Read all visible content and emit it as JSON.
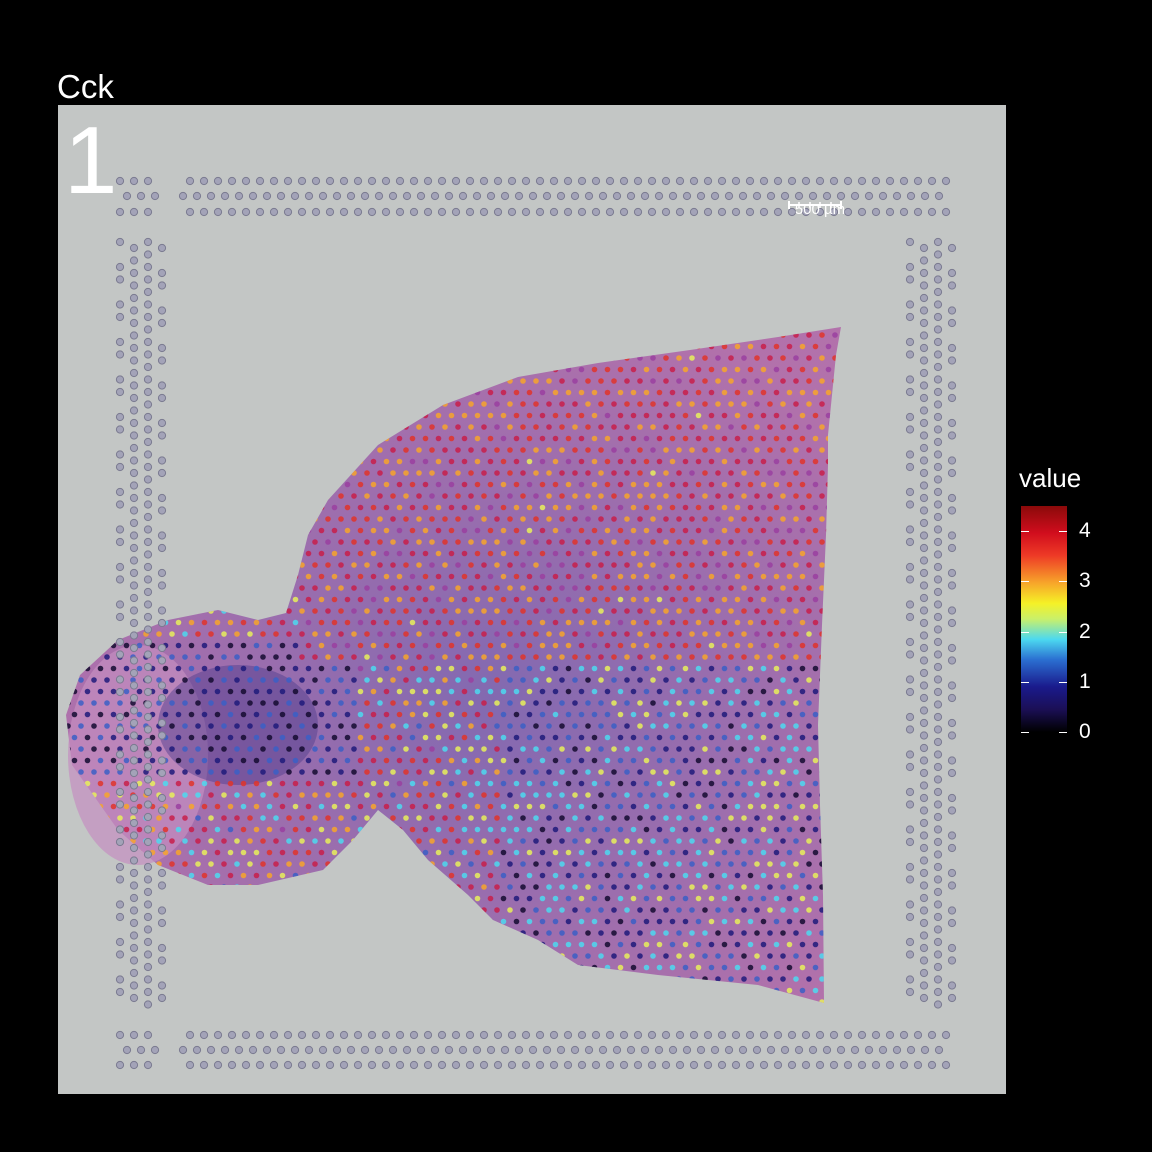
{
  "title": "Cck",
  "section_label": "1",
  "scale_bar": {
    "label": "500 µm"
  },
  "legend": {
    "title": "value",
    "ticks": [
      "0",
      "1",
      "2",
      "3",
      "4"
    ],
    "range": [
      0,
      4.5
    ],
    "colors": [
      "#000000",
      "#1a1a8c",
      "#4cd9f0",
      "#f5f126",
      "#ee3b26",
      "#8b0a0a"
    ]
  },
  "colors": {
    "background": "#000000",
    "slide": "#c3c6c5",
    "tissue": "#9a6bb0"
  }
}
